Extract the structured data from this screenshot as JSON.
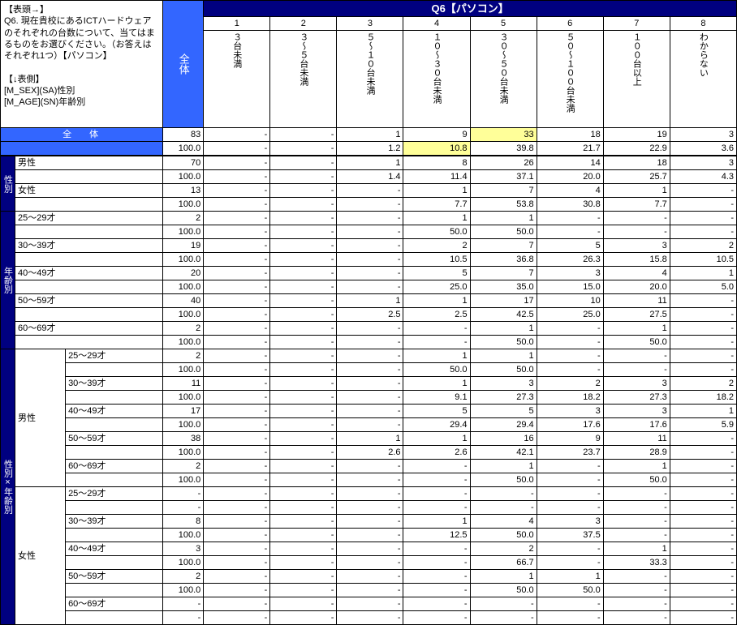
{
  "desc_l1": "【表頭→】",
  "desc_l2": "Q6. 現在貴校にあるICTハードウェアのそれぞれの台数について、当てはまるものをお選びください。（お答えは それぞれ1つ）【パソコン】",
  "desc_l3": "【↓表側】",
  "desc_l4": "[M_SEX](SA)性別",
  "desc_l5": "[M_AGE](SN)年齢別",
  "zentai_label": "全体",
  "q_title": "Q6【パソコン】",
  "cols": [
    {
      "n": "1",
      "l": "３台未満"
    },
    {
      "n": "2",
      "l": "３～５台未満"
    },
    {
      "n": "3",
      "l": "５～１０台未満"
    },
    {
      "n": "4",
      "l": "１０～３０台未満"
    },
    {
      "n": "5",
      "l": "３０～５０台未満"
    },
    {
      "n": "6",
      "l": "５０～１００台未満"
    },
    {
      "n": "7",
      "l": "１００台以上"
    },
    {
      "n": "8",
      "l": "わからない"
    }
  ],
  "cat1": "性別",
  "cat2": "年齢別",
  "cat3": "性別×年齢別",
  "grp_m": "男性",
  "grp_f": "女性",
  "ages": [
    "25～29才",
    "30～39才",
    "40～49才",
    "50～59才",
    "60～69才"
  ],
  "rows": {
    "total_n": [
      "83",
      "-",
      "-",
      "1",
      "9",
      "33",
      "18",
      "19",
      "3"
    ],
    "total_p": [
      "100.0",
      "-",
      "-",
      "1.2",
      "10.8",
      "39.8",
      "21.7",
      "22.9",
      "3.6"
    ],
    "m_n": [
      "70",
      "-",
      "-",
      "1",
      "8",
      "26",
      "14",
      "18",
      "3"
    ],
    "m_p": [
      "100.0",
      "-",
      "-",
      "1.4",
      "11.4",
      "37.1",
      "20.0",
      "25.7",
      "4.3"
    ],
    "f_n": [
      "13",
      "-",
      "-",
      "-",
      "1",
      "7",
      "4",
      "1",
      "-"
    ],
    "f_p": [
      "100.0",
      "-",
      "-",
      "-",
      "7.7",
      "53.8",
      "30.8",
      "7.7",
      "-"
    ],
    "a1_n": [
      "2",
      "-",
      "-",
      "-",
      "1",
      "1",
      "-",
      "-",
      "-"
    ],
    "a1_p": [
      "100.0",
      "-",
      "-",
      "-",
      "50.0",
      "50.0",
      "-",
      "-",
      "-"
    ],
    "a2_n": [
      "19",
      "-",
      "-",
      "-",
      "2",
      "7",
      "5",
      "3",
      "2"
    ],
    "a2_p": [
      "100.0",
      "-",
      "-",
      "-",
      "10.5",
      "36.8",
      "26.3",
      "15.8",
      "10.5"
    ],
    "a3_n": [
      "20",
      "-",
      "-",
      "-",
      "5",
      "7",
      "3",
      "4",
      "1"
    ],
    "a3_p": [
      "100.0",
      "-",
      "-",
      "-",
      "25.0",
      "35.0",
      "15.0",
      "20.0",
      "5.0"
    ],
    "a4_n": [
      "40",
      "-",
      "-",
      "1",
      "1",
      "17",
      "10",
      "11",
      "-"
    ],
    "a4_p": [
      "100.0",
      "-",
      "-",
      "2.5",
      "2.5",
      "42.5",
      "25.0",
      "27.5",
      "-"
    ],
    "a5_n": [
      "2",
      "-",
      "-",
      "-",
      "-",
      "1",
      "-",
      "1",
      "-"
    ],
    "a5_p": [
      "100.0",
      "-",
      "-",
      "-",
      "-",
      "50.0",
      "-",
      "50.0",
      "-"
    ],
    "ma1_n": [
      "2",
      "-",
      "-",
      "-",
      "1",
      "1",
      "-",
      "-",
      "-"
    ],
    "ma1_p": [
      "100.0",
      "-",
      "-",
      "-",
      "50.0",
      "50.0",
      "-",
      "-",
      "-"
    ],
    "ma2_n": [
      "11",
      "-",
      "-",
      "-",
      "1",
      "3",
      "2",
      "3",
      "2"
    ],
    "ma2_p": [
      "100.0",
      "-",
      "-",
      "-",
      "9.1",
      "27.3",
      "18.2",
      "27.3",
      "18.2"
    ],
    "ma3_n": [
      "17",
      "-",
      "-",
      "-",
      "5",
      "5",
      "3",
      "3",
      "1"
    ],
    "ma3_p": [
      "100.0",
      "-",
      "-",
      "-",
      "29.4",
      "29.4",
      "17.6",
      "17.6",
      "5.9"
    ],
    "ma4_n": [
      "38",
      "-",
      "-",
      "1",
      "1",
      "16",
      "9",
      "11",
      "-"
    ],
    "ma4_p": [
      "100.0",
      "-",
      "-",
      "2.6",
      "2.6",
      "42.1",
      "23.7",
      "28.9",
      "-"
    ],
    "ma5_n": [
      "2",
      "-",
      "-",
      "-",
      "-",
      "1",
      "-",
      "1",
      "-"
    ],
    "ma5_p": [
      "100.0",
      "-",
      "-",
      "-",
      "-",
      "50.0",
      "-",
      "50.0",
      "-"
    ],
    "fa1_n": [
      "-",
      "-",
      "-",
      "-",
      "-",
      "-",
      "-",
      "-",
      "-"
    ],
    "fa1_p": [
      "-",
      "-",
      "-",
      "-",
      "-",
      "-",
      "-",
      "-",
      "-"
    ],
    "fa2_n": [
      "8",
      "-",
      "-",
      "-",
      "1",
      "4",
      "3",
      "-",
      "-"
    ],
    "fa2_p": [
      "100.0",
      "-",
      "-",
      "-",
      "12.5",
      "50.0",
      "37.5",
      "-",
      "-"
    ],
    "fa3_n": [
      "3",
      "-",
      "-",
      "-",
      "-",
      "2",
      "-",
      "1",
      "-"
    ],
    "fa3_p": [
      "100.0",
      "-",
      "-",
      "-",
      "-",
      "66.7",
      "-",
      "33.3",
      "-"
    ],
    "fa4_n": [
      "2",
      "-",
      "-",
      "-",
      "-",
      "1",
      "1",
      "-",
      "-"
    ],
    "fa4_p": [
      "100.0",
      "-",
      "-",
      "-",
      "-",
      "50.0",
      "50.0",
      "-",
      "-"
    ],
    "fa5_n": [
      "-",
      "-",
      "-",
      "-",
      "-",
      "-",
      "-",
      "-",
      "-"
    ],
    "fa5_p": [
      "-",
      "-",
      "-",
      "-",
      "-",
      "-",
      "-",
      "-",
      "-"
    ]
  },
  "highlight": {
    "row": "total_n",
    "col": 5
  }
}
